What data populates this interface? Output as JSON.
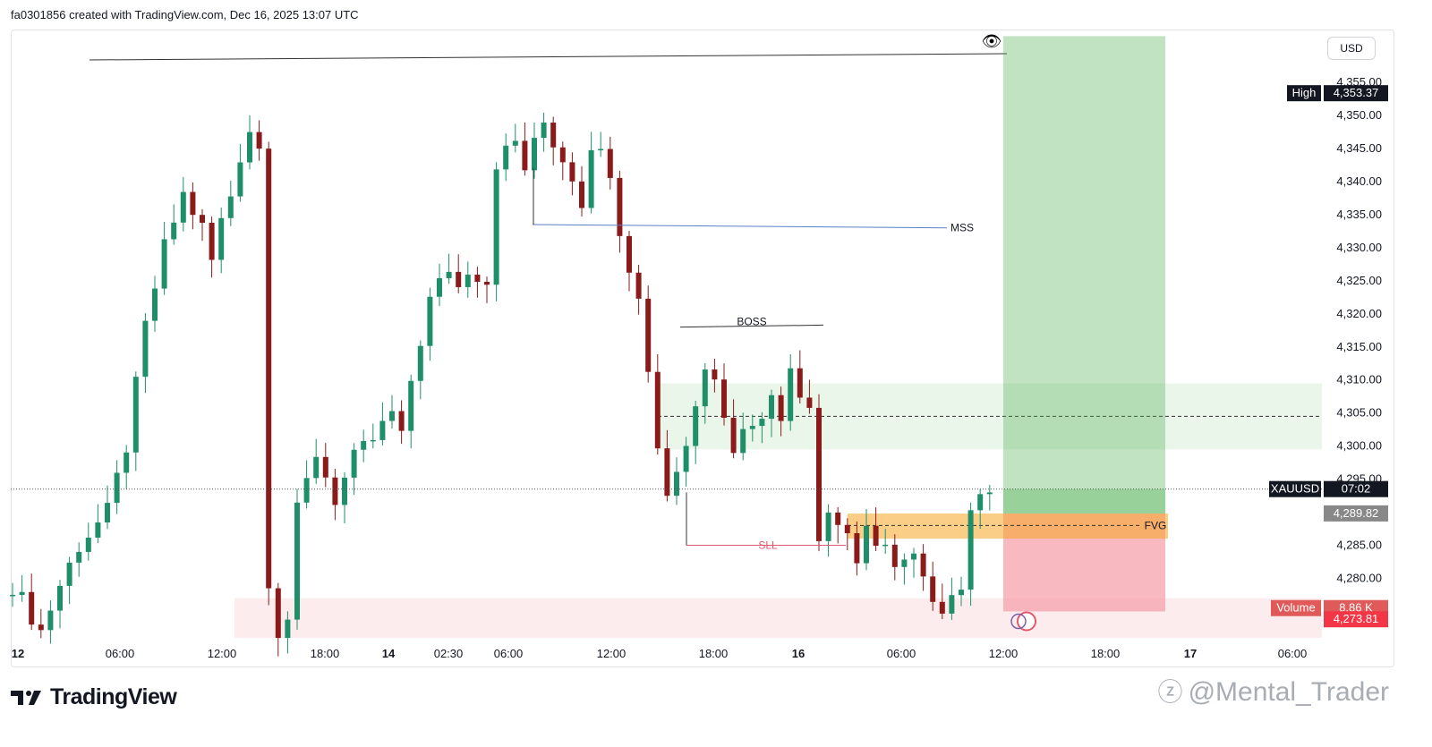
{
  "header": {
    "text": "fa0301856 created with TradingView.com, Dec 16, 2025 13:07 UTC"
  },
  "currency_button": "USD",
  "brand": {
    "logo_text": "TradingView"
  },
  "watermark": {
    "text": "@Mental_Trader"
  },
  "colors": {
    "bull": "#1f8f6a",
    "bear": "#8b1a1a",
    "tp_zone": "#4caf50",
    "sl_zone": "#f7a1ac",
    "fvg": "#f5a623",
    "mss_line": "#5b7fc7",
    "sll_line": "#e05a6f"
  },
  "chart_data": {
    "type": "candlestick",
    "symbol": "XAUUSD",
    "countdown": "07:02",
    "ylim": [
      4271,
      4363
    ],
    "y_ticks": [
      "4,280.00",
      "4,285.00",
      "4,290.00",
      "4,295.00",
      "4,300.00",
      "4,305.00",
      "4,310.00",
      "4,315.00",
      "4,320.00",
      "4,325.00",
      "4,330.00",
      "4,335.00",
      "4,340.00",
      "4,345.00",
      "4,350.00",
      "4,355.00"
    ],
    "x_ticks": [
      "12",
      "06:00",
      "12:00",
      "18:00",
      "14",
      "02:30",
      "06:00",
      "12:00",
      "18:00",
      "16",
      "06:00",
      "12:00",
      "18:00",
      "17",
      "06:00"
    ],
    "price_labels": [
      {
        "label": "High",
        "value": "4,353.37",
        "price": 4353.37
      },
      {
        "label": "XAUUSD",
        "value": "07:02",
        "price": 4293.5
      },
      {
        "label": "",
        "value": "4,289.82",
        "price": 4289.82
      },
      {
        "label": "Volume",
        "value": "8.86 K",
        "price": 4275.5
      },
      {
        "label": "",
        "value": "4,273.81",
        "price": 4273.81
      }
    ],
    "annotations": [
      {
        "text": "MSS",
        "price": 4333
      },
      {
        "text": "BOSS",
        "price": 4317.5
      },
      {
        "text": "SLL",
        "price": 4285
      },
      {
        "text": "FVG",
        "price": 4288
      }
    ],
    "path": [
      [
        0,
        4279
      ],
      [
        3,
        4272
      ],
      [
        5,
        4279
      ],
      [
        7,
        4285
      ],
      [
        10,
        4290
      ],
      [
        12,
        4300
      ],
      [
        14,
        4318
      ],
      [
        16,
        4330
      ],
      [
        18,
        4338
      ],
      [
        20,
        4333
      ],
      [
        21,
        4328
      ],
      [
        22,
        4334
      ],
      [
        23,
        4338
      ],
      [
        24,
        4344
      ],
      [
        25,
        4348
      ],
      [
        26,
        4345
      ],
      [
        27,
        4280
      ],
      [
        28,
        4272
      ],
      [
        29,
        4274
      ],
      [
        30,
        4290
      ],
      [
        32,
        4299
      ],
      [
        34,
        4292
      ],
      [
        36,
        4298
      ],
      [
        38,
        4301
      ],
      [
        40,
        4305
      ],
      [
        41,
        4301
      ],
      [
        42,
        4310
      ],
      [
        44,
        4322
      ],
      [
        46,
        4327
      ],
      [
        47,
        4324
      ],
      [
        48,
        4327
      ],
      [
        50,
        4325
      ],
      [
        51,
        4343
      ],
      [
        53,
        4346
      ],
      [
        54,
        4342
      ],
      [
        56,
        4349
      ],
      [
        57,
        4346
      ],
      [
        59,
        4341
      ],
      [
        60,
        4337
      ],
      [
        61,
        4346
      ],
      [
        63,
        4342
      ],
      [
        64,
        4333
      ],
      [
        66,
        4322
      ],
      [
        67,
        4312
      ],
      [
        68,
        4300
      ],
      [
        69,
        4293
      ],
      [
        71,
        4300
      ],
      [
        72,
        4307
      ],
      [
        73,
        4313
      ],
      [
        74,
        4311
      ],
      [
        75,
        4304
      ],
      [
        76,
        4300
      ],
      [
        78,
        4304
      ],
      [
        80,
        4307
      ],
      [
        81,
        4304
      ],
      [
        82,
        4313
      ],
      [
        83,
        4308
      ],
      [
        84,
        4307
      ],
      [
        85,
        4286
      ],
      [
        86,
        4290
      ],
      [
        88,
        4287
      ],
      [
        89,
        4281
      ],
      [
        90,
        4287
      ],
      [
        92,
        4285
      ],
      [
        93,
        4281
      ],
      [
        95,
        4283
      ],
      [
        96,
        4279
      ],
      [
        98,
        4276
      ],
      [
        100,
        4279
      ],
      [
        101,
        4289
      ],
      [
        102,
        4294
      ]
    ]
  }
}
